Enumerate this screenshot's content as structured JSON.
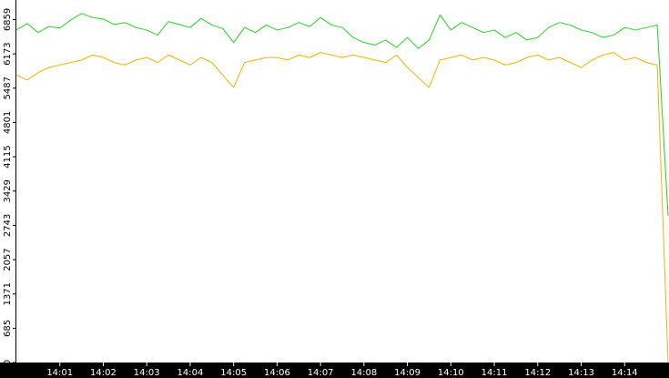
{
  "chart_data": {
    "type": "line",
    "categories": [
      null,
      null,
      null,
      null,
      "14:01",
      null,
      null,
      null,
      "14:02",
      null,
      null,
      null,
      "14:03",
      null,
      null,
      null,
      "14:04",
      null,
      null,
      null,
      "14:05",
      null,
      null,
      null,
      "14:06",
      null,
      null,
      null,
      "14:07",
      null,
      null,
      null,
      "14:08",
      null,
      null,
      null,
      "14:09",
      null,
      null,
      null,
      "14:10",
      null,
      null,
      null,
      "14:11",
      null,
      null,
      null,
      "14:12",
      null,
      null,
      null,
      "14:13",
      null,
      null,
      null,
      "14:14",
      null,
      null,
      null,
      null
    ],
    "series": [
      {
        "color": "#22d422",
        "values": [
          6650,
          6780,
          6600,
          6720,
          6690,
          6850,
          6980,
          6900,
          6870,
          6760,
          6800,
          6700,
          6650,
          6550,
          6820,
          6760,
          6700,
          6880,
          6750,
          6680,
          6400,
          6700,
          6600,
          6750,
          6650,
          6700,
          6800,
          6720,
          6900,
          6750,
          6700,
          6500,
          6400,
          6350,
          6450,
          6300,
          6500,
          6280,
          6450,
          6950,
          6650,
          6800,
          6700,
          6600,
          6650,
          6500,
          6600,
          6450,
          6500,
          6700,
          6800,
          6750,
          6650,
          6600,
          6500,
          6550,
          6700,
          6650,
          6700,
          6750,
          2930
        ]
      },
      {
        "color": "#f0b400",
        "values": [
          5750,
          5650,
          5800,
          5900,
          5950,
          6000,
          6050,
          6150,
          6100,
          6000,
          5950,
          6050,
          6100,
          6000,
          6150,
          6050,
          5950,
          6100,
          6000,
          5750,
          5500,
          6000,
          6050,
          6100,
          6100,
          6050,
          6150,
          6100,
          6200,
          6150,
          6100,
          6150,
          6100,
          6050,
          6000,
          6150,
          5900,
          5700,
          5500,
          6050,
          6100,
          6150,
          6050,
          6100,
          6050,
          5950,
          6000,
          6100,
          6150,
          6050,
          6100,
          6000,
          5900,
          6050,
          6150,
          6200,
          6050,
          6100,
          6000,
          5950,
          0
        ]
      }
    ],
    "ylim": [
      0,
      7250
    ],
    "yticks": [
      0,
      685,
      1371,
      2057,
      2743,
      3429,
      4115,
      4801,
      5487,
      6173,
      6859
    ]
  }
}
